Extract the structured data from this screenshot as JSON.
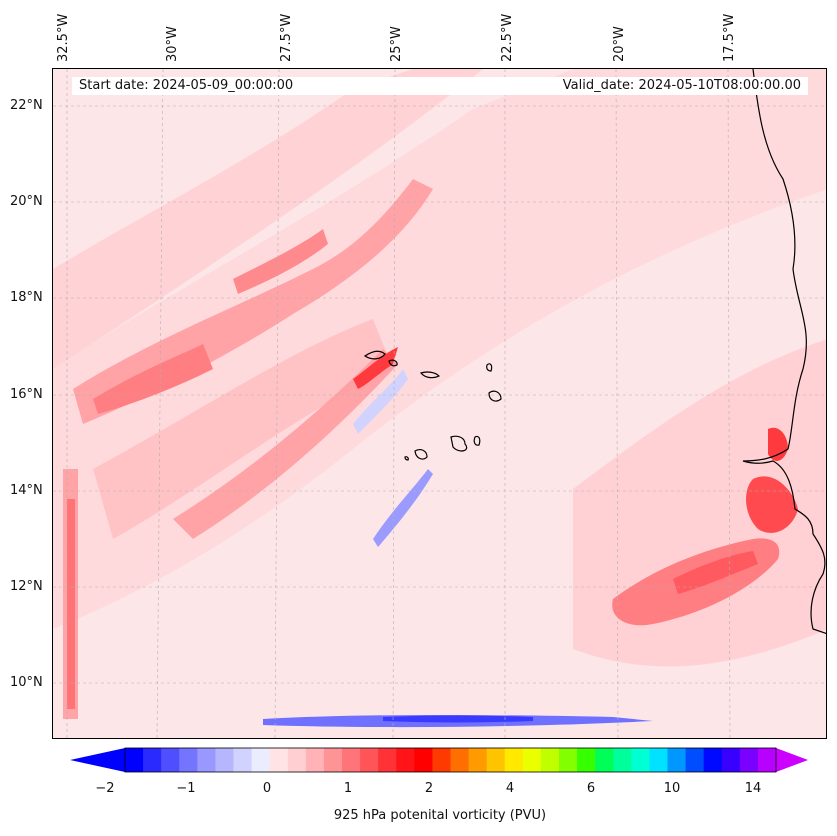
{
  "header": {
    "start_date": "Start date: 2024-05-09_00:00:00",
    "valid_date": "Valid_date: 2024-05-10T08:00:00.00"
  },
  "axes": {
    "lon_labels": [
      "32.5°W",
      "30°W",
      "27.5°W",
      "25°W",
      "22.5°W",
      "20°W",
      "17.5°W"
    ],
    "lat_labels": [
      "22°N",
      "20°N",
      "18°N",
      "16°N",
      "14°N",
      "12°N",
      "10°N"
    ]
  },
  "colorbar": {
    "label": "925 hPa potenital vorticity (PVU)",
    "tick_labels": [
      "−2",
      "−1",
      "0",
      "1",
      "2",
      "4",
      "6",
      "10",
      "14"
    ],
    "colors": [
      "#0000ff",
      "#2a2aff",
      "#4f4fff",
      "#7474ff",
      "#9898ff",
      "#b6b6ff",
      "#d2d2ff",
      "#ececff",
      "#ffe4e5",
      "#ffcfd1",
      "#ffb3b6",
      "#ff9497",
      "#ff7478",
      "#ff5559",
      "#ff3337",
      "#ff1418",
      "#ff0000",
      "#ff3a00",
      "#ff6e00",
      "#ff9a00",
      "#ffc400",
      "#ffe900",
      "#eaff00",
      "#bfff00",
      "#82ff00",
      "#35ff00",
      "#00ff56",
      "#00ff9a",
      "#00ffd2",
      "#00e2ff",
      "#0098ff",
      "#004dff",
      "#0009ff",
      "#3800ff",
      "#7a00ff",
      "#b800ff"
    ],
    "extend_min_color": "#0000ff",
    "extend_max_color": "#cc00ff"
  },
  "map": {
    "background_color": "#fde9ea",
    "coastline_color": "#000000",
    "positive_pv_color": "#ff6d71",
    "negative_pv_color": "#6a6aff"
  }
}
